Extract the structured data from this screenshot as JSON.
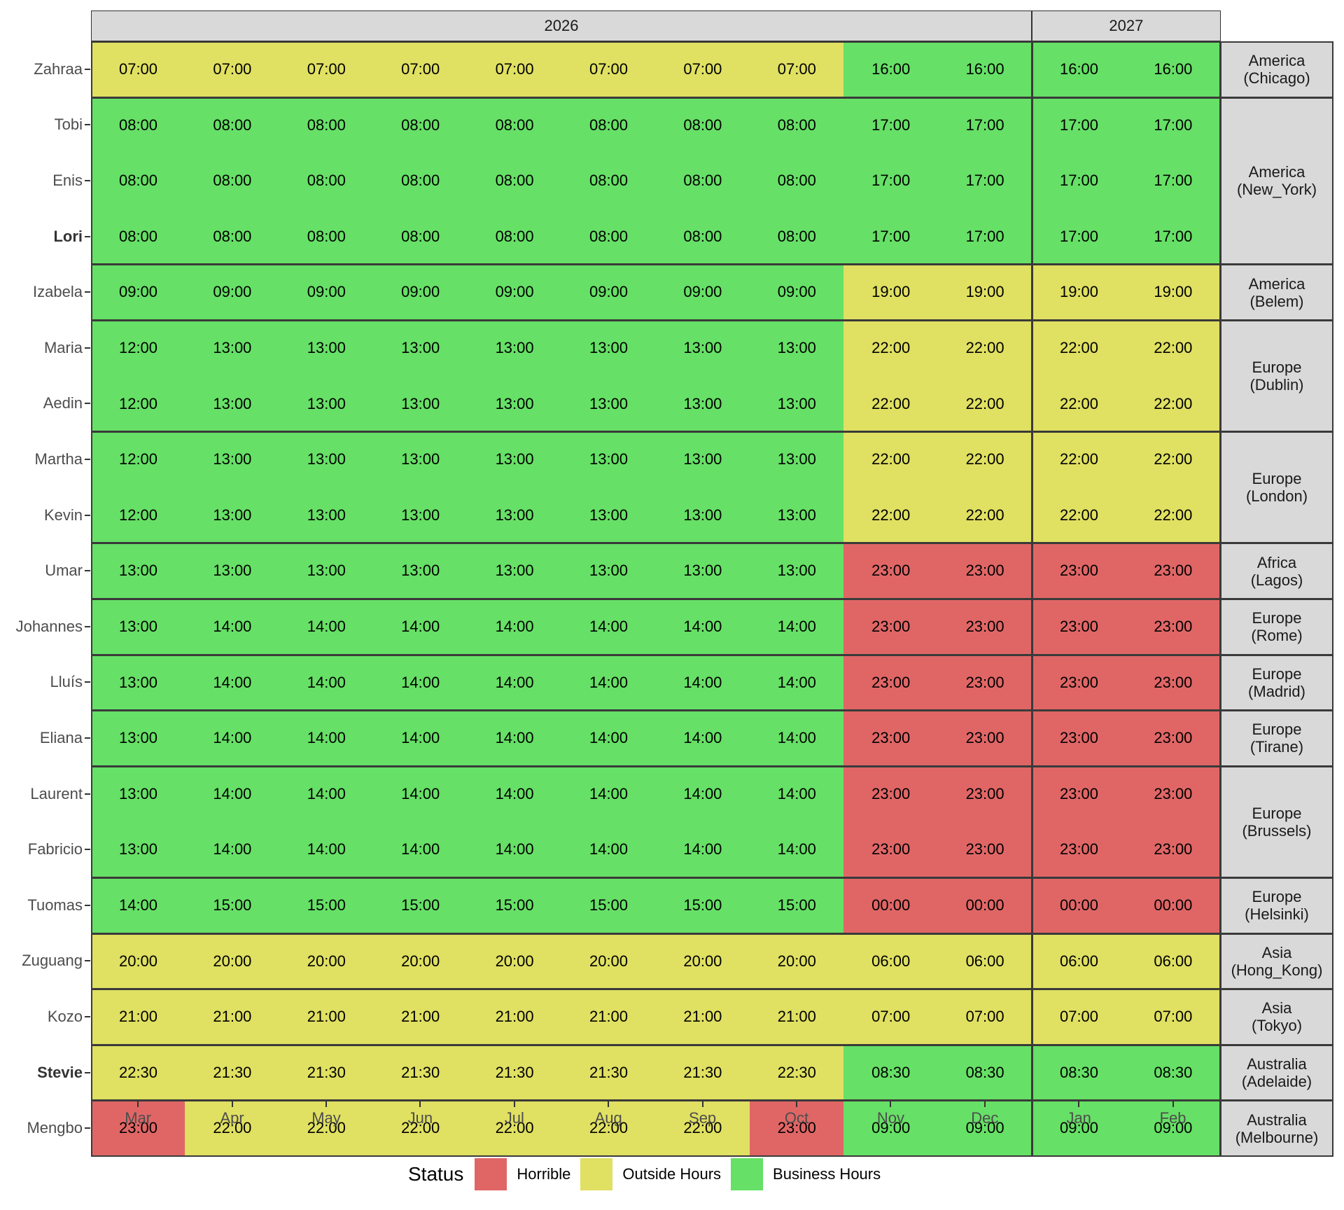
{
  "chart_data": {
    "type": "heatmap",
    "title": "",
    "xlabel": "",
    "ylabel": "",
    "facet_columns": [
      {
        "label": "2026",
        "months": [
          "Mar",
          "Apr",
          "May",
          "Jun",
          "Jul",
          "Aug",
          "Sep",
          "Oct",
          "Nov",
          "Dec"
        ]
      },
      {
        "label": "2027",
        "months": [
          "Jan",
          "Feb"
        ]
      }
    ],
    "x_categories": [
      "Mar",
      "Apr",
      "May",
      "Jun",
      "Jul",
      "Aug",
      "Sep",
      "Oct",
      "Nov",
      "Dec",
      "Jan",
      "Feb"
    ],
    "legend": {
      "title": "Status",
      "position": "bottom",
      "entries": [
        {
          "label": "Horrible",
          "color": "#e06666"
        },
        {
          "label": "Outside Hours",
          "color": "#e0e062"
        },
        {
          "label": "Business Hours",
          "color": "#66e066"
        }
      ]
    },
    "timezones": [
      {
        "label": "America\n(Chicago)",
        "people": [
          "Zahraa"
        ]
      },
      {
        "label": "America\n(New_York)",
        "people": [
          "Tobi",
          "Enis",
          "Lori"
        ]
      },
      {
        "label": "America\n(Belem)",
        "people": [
          "Izabela"
        ]
      },
      {
        "label": "Europe\n(Dublin)",
        "people": [
          "Maria",
          "Aedin"
        ]
      },
      {
        "label": "Europe\n(London)",
        "people": [
          "Martha",
          "Kevin"
        ]
      },
      {
        "label": "Africa\n(Lagos)",
        "people": [
          "Umar"
        ]
      },
      {
        "label": "Europe\n(Rome)",
        "people": [
          "Johannes"
        ]
      },
      {
        "label": "Europe\n(Madrid)",
        "people": [
          "Lluís"
        ]
      },
      {
        "label": "Europe\n(Tirane)",
        "people": [
          "Eliana"
        ]
      },
      {
        "label": "Europe\n(Brussels)",
        "people": [
          "Laurent",
          "Fabricio"
        ]
      },
      {
        "label": "Europe\n(Helsinki)",
        "people": [
          "Tuomas"
        ]
      },
      {
        "label": "Asia\n(Hong_Kong)",
        "people": [
          "Zuguang"
        ]
      },
      {
        "label": "Asia\n(Tokyo)",
        "people": [
          "Kozo"
        ]
      },
      {
        "label": "Australia\n(Adelaide)",
        "people": [
          "Stevie"
        ]
      },
      {
        "label": "Australia\n(Melbourne)",
        "people": [
          "Mengbo"
        ]
      }
    ],
    "rows": [
      {
        "name": "Zahraa",
        "bold": false,
        "times": [
          "07:00",
          "07:00",
          "07:00",
          "07:00",
          "07:00",
          "07:00",
          "07:00",
          "07:00",
          "16:00",
          "16:00",
          "16:00",
          "16:00"
        ],
        "status": [
          "O",
          "O",
          "O",
          "O",
          "O",
          "O",
          "O",
          "O",
          "B",
          "B",
          "B",
          "B"
        ]
      },
      {
        "name": "Tobi",
        "bold": false,
        "times": [
          "08:00",
          "08:00",
          "08:00",
          "08:00",
          "08:00",
          "08:00",
          "08:00",
          "08:00",
          "17:00",
          "17:00",
          "17:00",
          "17:00"
        ],
        "status": [
          "B",
          "B",
          "B",
          "B",
          "B",
          "B",
          "B",
          "B",
          "B",
          "B",
          "B",
          "B"
        ]
      },
      {
        "name": "Enis",
        "bold": false,
        "times": [
          "08:00",
          "08:00",
          "08:00",
          "08:00",
          "08:00",
          "08:00",
          "08:00",
          "08:00",
          "17:00",
          "17:00",
          "17:00",
          "17:00"
        ],
        "status": [
          "B",
          "B",
          "B",
          "B",
          "B",
          "B",
          "B",
          "B",
          "B",
          "B",
          "B",
          "B"
        ]
      },
      {
        "name": "Lori",
        "bold": true,
        "times": [
          "08:00",
          "08:00",
          "08:00",
          "08:00",
          "08:00",
          "08:00",
          "08:00",
          "08:00",
          "17:00",
          "17:00",
          "17:00",
          "17:00"
        ],
        "status": [
          "B",
          "B",
          "B",
          "B",
          "B",
          "B",
          "B",
          "B",
          "B",
          "B",
          "B",
          "B"
        ]
      },
      {
        "name": "Izabela",
        "bold": false,
        "times": [
          "09:00",
          "09:00",
          "09:00",
          "09:00",
          "09:00",
          "09:00",
          "09:00",
          "09:00",
          "19:00",
          "19:00",
          "19:00",
          "19:00"
        ],
        "status": [
          "B",
          "B",
          "B",
          "B",
          "B",
          "B",
          "B",
          "B",
          "O",
          "O",
          "O",
          "O"
        ]
      },
      {
        "name": "Maria",
        "bold": false,
        "times": [
          "12:00",
          "13:00",
          "13:00",
          "13:00",
          "13:00",
          "13:00",
          "13:00",
          "13:00",
          "22:00",
          "22:00",
          "22:00",
          "22:00"
        ],
        "status": [
          "B",
          "B",
          "B",
          "B",
          "B",
          "B",
          "B",
          "B",
          "O",
          "O",
          "O",
          "O"
        ]
      },
      {
        "name": "Aedin",
        "bold": false,
        "times": [
          "12:00",
          "13:00",
          "13:00",
          "13:00",
          "13:00",
          "13:00",
          "13:00",
          "13:00",
          "22:00",
          "22:00",
          "22:00",
          "22:00"
        ],
        "status": [
          "B",
          "B",
          "B",
          "B",
          "B",
          "B",
          "B",
          "B",
          "O",
          "O",
          "O",
          "O"
        ]
      },
      {
        "name": "Martha",
        "bold": false,
        "times": [
          "12:00",
          "13:00",
          "13:00",
          "13:00",
          "13:00",
          "13:00",
          "13:00",
          "13:00",
          "22:00",
          "22:00",
          "22:00",
          "22:00"
        ],
        "status": [
          "B",
          "B",
          "B",
          "B",
          "B",
          "B",
          "B",
          "B",
          "O",
          "O",
          "O",
          "O"
        ]
      },
      {
        "name": "Kevin",
        "bold": false,
        "times": [
          "12:00",
          "13:00",
          "13:00",
          "13:00",
          "13:00",
          "13:00",
          "13:00",
          "13:00",
          "22:00",
          "22:00",
          "22:00",
          "22:00"
        ],
        "status": [
          "B",
          "B",
          "B",
          "B",
          "B",
          "B",
          "B",
          "B",
          "O",
          "O",
          "O",
          "O"
        ]
      },
      {
        "name": "Umar",
        "bold": false,
        "times": [
          "13:00",
          "13:00",
          "13:00",
          "13:00",
          "13:00",
          "13:00",
          "13:00",
          "13:00",
          "23:00",
          "23:00",
          "23:00",
          "23:00"
        ],
        "status": [
          "B",
          "B",
          "B",
          "B",
          "B",
          "B",
          "B",
          "B",
          "H",
          "H",
          "H",
          "H"
        ]
      },
      {
        "name": "Johannes",
        "bold": false,
        "times": [
          "13:00",
          "14:00",
          "14:00",
          "14:00",
          "14:00",
          "14:00",
          "14:00",
          "14:00",
          "23:00",
          "23:00",
          "23:00",
          "23:00"
        ],
        "status": [
          "B",
          "B",
          "B",
          "B",
          "B",
          "B",
          "B",
          "B",
          "H",
          "H",
          "H",
          "H"
        ]
      },
      {
        "name": "Lluís",
        "bold": false,
        "times": [
          "13:00",
          "14:00",
          "14:00",
          "14:00",
          "14:00",
          "14:00",
          "14:00",
          "14:00",
          "23:00",
          "23:00",
          "23:00",
          "23:00"
        ],
        "status": [
          "B",
          "B",
          "B",
          "B",
          "B",
          "B",
          "B",
          "B",
          "H",
          "H",
          "H",
          "H"
        ]
      },
      {
        "name": "Eliana",
        "bold": false,
        "times": [
          "13:00",
          "14:00",
          "14:00",
          "14:00",
          "14:00",
          "14:00",
          "14:00",
          "14:00",
          "23:00",
          "23:00",
          "23:00",
          "23:00"
        ],
        "status": [
          "B",
          "B",
          "B",
          "B",
          "B",
          "B",
          "B",
          "B",
          "H",
          "H",
          "H",
          "H"
        ]
      },
      {
        "name": "Laurent",
        "bold": false,
        "times": [
          "13:00",
          "14:00",
          "14:00",
          "14:00",
          "14:00",
          "14:00",
          "14:00",
          "14:00",
          "23:00",
          "23:00",
          "23:00",
          "23:00"
        ],
        "status": [
          "B",
          "B",
          "B",
          "B",
          "B",
          "B",
          "B",
          "B",
          "H",
          "H",
          "H",
          "H"
        ]
      },
      {
        "name": "Fabricio",
        "bold": false,
        "times": [
          "13:00",
          "14:00",
          "14:00",
          "14:00",
          "14:00",
          "14:00",
          "14:00",
          "14:00",
          "23:00",
          "23:00",
          "23:00",
          "23:00"
        ],
        "status": [
          "B",
          "B",
          "B",
          "B",
          "B",
          "B",
          "B",
          "B",
          "H",
          "H",
          "H",
          "H"
        ]
      },
      {
        "name": "Tuomas",
        "bold": false,
        "times": [
          "14:00",
          "15:00",
          "15:00",
          "15:00",
          "15:00",
          "15:00",
          "15:00",
          "15:00",
          "00:00",
          "00:00",
          "00:00",
          "00:00"
        ],
        "status": [
          "B",
          "B",
          "B",
          "B",
          "B",
          "B",
          "B",
          "B",
          "H",
          "H",
          "H",
          "H"
        ]
      },
      {
        "name": "Zuguang",
        "bold": false,
        "times": [
          "20:00",
          "20:00",
          "20:00",
          "20:00",
          "20:00",
          "20:00",
          "20:00",
          "20:00",
          "06:00",
          "06:00",
          "06:00",
          "06:00"
        ],
        "status": [
          "O",
          "O",
          "O",
          "O",
          "O",
          "O",
          "O",
          "O",
          "O",
          "O",
          "O",
          "O"
        ]
      },
      {
        "name": "Kozo",
        "bold": false,
        "times": [
          "21:00",
          "21:00",
          "21:00",
          "21:00",
          "21:00",
          "21:00",
          "21:00",
          "21:00",
          "07:00",
          "07:00",
          "07:00",
          "07:00"
        ],
        "status": [
          "O",
          "O",
          "O",
          "O",
          "O",
          "O",
          "O",
          "O",
          "O",
          "O",
          "O",
          "O"
        ]
      },
      {
        "name": "Stevie",
        "bold": true,
        "times": [
          "22:30",
          "21:30",
          "21:30",
          "21:30",
          "21:30",
          "21:30",
          "21:30",
          "22:30",
          "08:30",
          "08:30",
          "08:30",
          "08:30"
        ],
        "status": [
          "O",
          "O",
          "O",
          "O",
          "O",
          "O",
          "O",
          "O",
          "B",
          "B",
          "B",
          "B"
        ]
      },
      {
        "name": "Mengbo",
        "bold": false,
        "times": [
          "23:00",
          "22:00",
          "22:00",
          "22:00",
          "22:00",
          "22:00",
          "22:00",
          "23:00",
          "09:00",
          "09:00",
          "09:00",
          "09:00"
        ],
        "status": [
          "H",
          "O",
          "O",
          "O",
          "O",
          "O",
          "O",
          "H",
          "B",
          "B",
          "B",
          "B"
        ]
      }
    ],
    "status_codes": {
      "H": "Horrible",
      "O": "Outside Hours",
      "B": "Business Hours"
    },
    "status_colors": {
      "H": "#e06666",
      "O": "#e0e062",
      "B": "#66e066"
    }
  }
}
